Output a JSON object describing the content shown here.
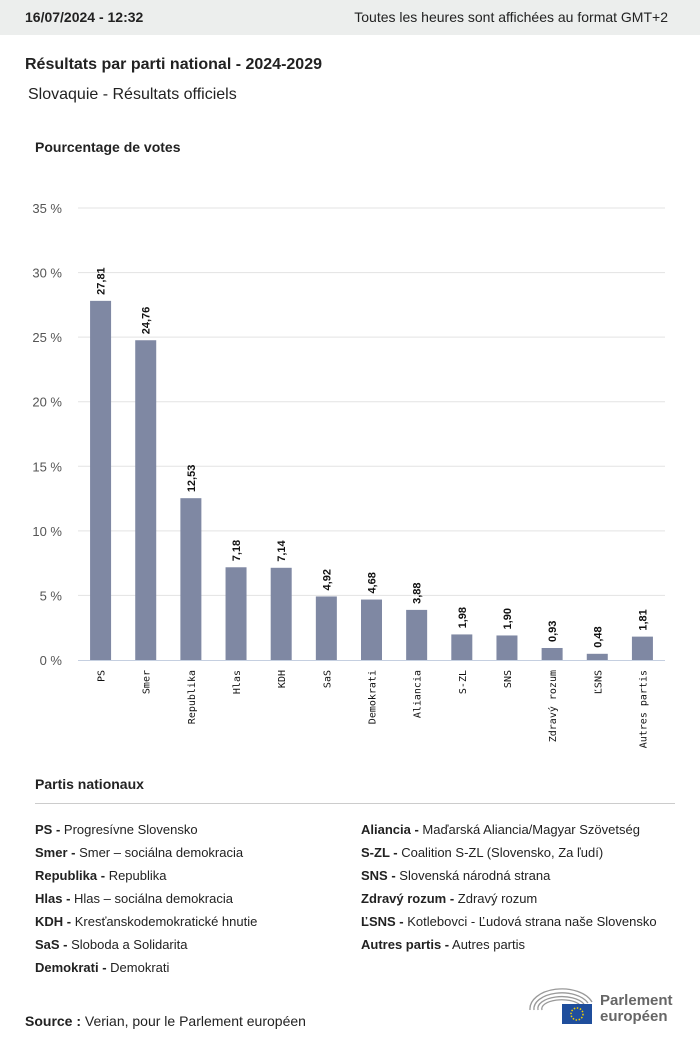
{
  "header": {
    "date": "16/07/2024 - 12:32",
    "timezone_note": "Toutes les heures sont affichées au format GMT+2"
  },
  "title": "Résultats par parti national - 2024-2029",
  "subtitle": "Slovaquie - Résultats officiels",
  "chart_data": {
    "type": "bar",
    "ylabel": "Pourcentage de votes",
    "categories": [
      "PS",
      "Smer",
      "Republika",
      "Hlas",
      "KDH",
      "SaS",
      "Demokrati",
      "Aliancia",
      "S-ZL",
      "SNS",
      "Zdravý rozum",
      "ĽSNS",
      "Autres partis"
    ],
    "values": [
      27.81,
      24.76,
      12.53,
      7.18,
      7.14,
      4.92,
      4.68,
      3.88,
      1.98,
      1.9,
      0.93,
      0.48,
      1.81
    ],
    "data_labels": [
      "27,81",
      "24,76",
      "12,53",
      "7,18",
      "7,14",
      "4,92",
      "4,68",
      "3,88",
      "1,98",
      "1,90",
      "0,93",
      "0,48",
      "1,81"
    ],
    "ylim": [
      0,
      35
    ],
    "yticks": [
      0,
      5,
      10,
      15,
      20,
      25,
      30,
      35
    ],
    "ytick_labels": [
      "0 %",
      "5 %",
      "10 %",
      "15 %",
      "20 %",
      "25 %",
      "30 %",
      "35 %"
    ],
    "grid": true,
    "bar_color": "#7f88a3"
  },
  "legend": {
    "title": "Partis nationaux",
    "left": [
      {
        "abbr": "PS -",
        "name": "Progresívne Slovensko"
      },
      {
        "abbr": "Smer -",
        "name": "Smer – sociálna demokracia"
      },
      {
        "abbr": "Republika -",
        "name": "Republika"
      },
      {
        "abbr": "Hlas -",
        "name": "Hlas – sociálna demokracia"
      },
      {
        "abbr": "KDH -",
        "name": "Kresťanskodemokratické hnutie"
      },
      {
        "abbr": "SaS -",
        "name": "Sloboda a Solidarita"
      },
      {
        "abbr": "Demokrati -",
        "name": "Demokrati"
      }
    ],
    "right": [
      {
        "abbr": "Aliancia -",
        "name": "Maďarská Aliancia/Magyar Szövetség"
      },
      {
        "abbr": "S-ZL -",
        "name": "Coalition S-ZL (Slovensko, Za ľudí)"
      },
      {
        "abbr": "SNS -",
        "name": "Slovenská národná strana"
      },
      {
        "abbr": "Zdravý rozum -",
        "name": "Zdravý rozum"
      },
      {
        "abbr": "ĽSNS -",
        "name": "Kotlebovci - Ľudová strana naše Slovensko"
      },
      {
        "abbr": "Autres partis -",
        "name": "Autres partis"
      }
    ]
  },
  "footer": {
    "source_label": "Source :",
    "source_text": " Verian, pour le Parlement européen",
    "logo_line1": "Parlement",
    "logo_line2": "européen"
  }
}
